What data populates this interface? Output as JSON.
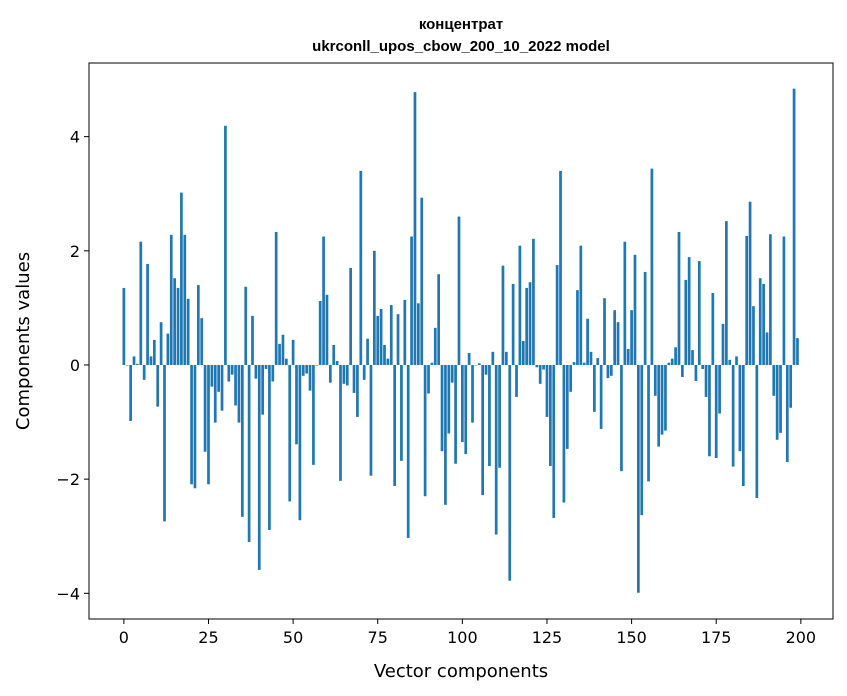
{
  "chart_data": {
    "type": "bar",
    "title": [
      "концентрат",
      "ukrconll_upos_cbow_200_10_2022 model"
    ],
    "xlabel": "Vector components",
    "ylabel": "Components values",
    "xlim": [
      -10.3,
      209.5
    ],
    "ylim": [
      -4.45,
      5.29
    ],
    "xticks": [
      0,
      25,
      50,
      75,
      100,
      125,
      150,
      175,
      200
    ],
    "yticks": [
      -4,
      -2,
      0,
      2,
      4
    ],
    "ytick_labels": [
      "−4",
      "−2",
      "0",
      "2",
      "4"
    ],
    "grid": false,
    "bar_color": "#1f77b4",
    "x_start": 0,
    "values": [
      1.35,
      0.0,
      -0.98,
      0.15,
      0.02,
      2.16,
      -0.26,
      1.77,
      0.15,
      0.44,
      -0.73,
      0.75,
      -2.74,
      0.55,
      2.28,
      1.52,
      1.35,
      3.02,
      2.28,
      1.16,
      -2.09,
      -2.16,
      1.4,
      0.82,
      -1.52,
      -2.09,
      -0.38,
      -1.01,
      -0.47,
      -0.8,
      4.19,
      -0.29,
      -0.17,
      -0.71,
      -1.01,
      -2.66,
      1.37,
      -3.1,
      0.86,
      -0.24,
      -3.59,
      -0.87,
      -0.07,
      -2.89,
      -0.29,
      2.33,
      0.37,
      0.53,
      0.11,
      -2.39,
      0.44,
      -1.39,
      -2.72,
      -0.19,
      -0.15,
      -0.45,
      -1.75,
      -0.01,
      1.12,
      2.25,
      1.23,
      -0.31,
      0.35,
      0.07,
      -2.03,
      -0.33,
      -0.36,
      1.7,
      -0.49,
      -0.91,
      3.4,
      -0.26,
      0.46,
      -1.94,
      2.0,
      0.86,
      0.98,
      0.35,
      0.11,
      1.05,
      -2.12,
      0.89,
      -1.68,
      1.14,
      -3.03,
      2.25,
      4.78,
      1.08,
      2.93,
      -2.3,
      -0.5,
      0.04,
      0.65,
      1.59,
      -1.51,
      -2.45,
      -1.2,
      -0.31,
      -1.73,
      2.6,
      -1.35,
      -1.56,
      0.21,
      -1.01,
      0.0,
      0.03,
      -2.28,
      -0.17,
      -1.77,
      0.23,
      -2.97,
      -1.8,
      1.74,
      0.23,
      -3.78,
      1.42,
      -0.56,
      2.09,
      0.42,
      1.35,
      1.45,
      2.21,
      -0.04,
      -0.33,
      -0.08,
      -0.91,
      -1.77,
      -2.68,
      1.75,
      3.4,
      -2.41,
      -1.47,
      -0.47,
      0.05,
      1.31,
      2.09,
      0.04,
      0.81,
      0.23,
      -0.82,
      0.12,
      -1.12,
      1.17,
      -0.23,
      -0.19,
      0.96,
      0.75,
      -1.86,
      2.16,
      0.28,
      0.96,
      1.93,
      -3.99,
      -2.63,
      1.63,
      -2.04,
      3.44,
      -0.54,
      -1.43,
      -1.22,
      -1.15,
      0.04,
      0.11,
      0.31,
      2.33,
      -0.21,
      1.49,
      1.89,
      0.26,
      -0.28,
      1.82,
      -0.07,
      -0.56,
      -1.6,
      1.26,
      -1.63,
      -0.85,
      0.72,
      2.52,
      0.09,
      -1.78,
      0.15,
      -1.51,
      -2.12,
      2.26,
      2.86,
      1.03,
      -2.33,
      1.52,
      1.42,
      0.57,
      2.29,
      -0.54,
      -1.31,
      -1.19,
      2.25,
      -1.7,
      -0.75,
      4.84,
      0.47
    ]
  }
}
